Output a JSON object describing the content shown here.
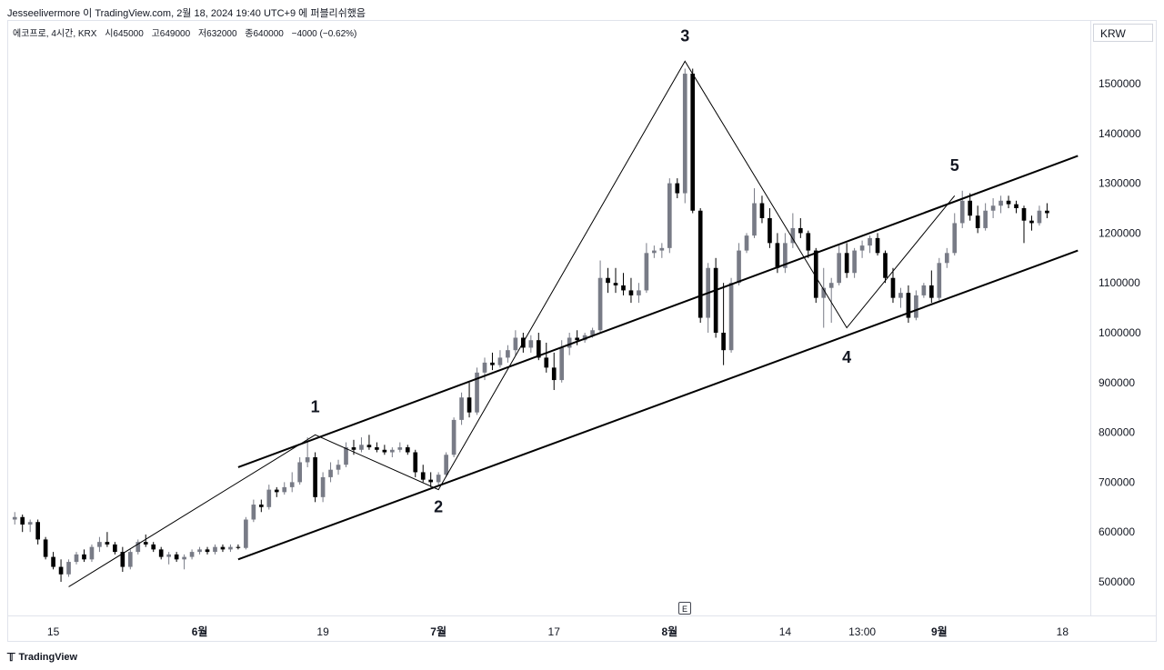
{
  "header": {
    "published_line": "Jesseelivermore 이 TradingView.com, 2월 18, 2024 19:40 UTC+9 에 퍼블리쉬했음"
  },
  "legend": {
    "symbol": "에코프로, 4시간, KRX",
    "open": "시645000",
    "high": "고649000",
    "low": "저632000",
    "close": "종640000",
    "change": "−4000 (−0.62%)"
  },
  "currency_label": "KRW",
  "event_badge": "E",
  "brand": "TradingView",
  "colors": {
    "up": "#787b86",
    "down": "#000000",
    "line": "#000000",
    "grid": "#e0e3eb"
  },
  "chart_data": {
    "type": "candlestick",
    "y_axis": {
      "ticks": [
        500000,
        600000,
        700000,
        800000,
        900000,
        1000000,
        1100000,
        1200000,
        1300000,
        1400000,
        1500000
      ],
      "tick_labels": [
        "500000",
        "600000",
        "700000",
        "800000",
        "900000",
        "1000000",
        "1100000",
        "1200000",
        "1300000",
        "1400000",
        "1500000"
      ],
      "range": [
        450000,
        1560000
      ],
      "unit": "KRW"
    },
    "x_axis": {
      "labels": [
        "15",
        "6월",
        "19",
        "7월",
        "17",
        "8월",
        "14",
        "13:00",
        "9월",
        "18"
      ],
      "label_bar_index": [
        5,
        24,
        40,
        55,
        70,
        85,
        100,
        110,
        120,
        136
      ],
      "bold_labels": [
        "6월",
        "7월",
        "8월",
        "9월"
      ],
      "total_bars": 140
    },
    "candles": [
      [
        0,
        625000,
        640000,
        615000,
        630000
      ],
      [
        1,
        630000,
        635000,
        600000,
        615000
      ],
      [
        2,
        615000,
        625000,
        600000,
        620000
      ],
      [
        3,
        620000,
        625000,
        575000,
        585000
      ],
      [
        4,
        585000,
        590000,
        545000,
        550000
      ],
      [
        5,
        550000,
        560000,
        525000,
        530000
      ],
      [
        6,
        530000,
        545000,
        500000,
        515000
      ],
      [
        7,
        515000,
        545000,
        510000,
        540000
      ],
      [
        8,
        540000,
        560000,
        535000,
        555000
      ],
      [
        9,
        555000,
        565000,
        540000,
        545000
      ],
      [
        10,
        545000,
        575000,
        540000,
        570000
      ],
      [
        11,
        570000,
        590000,
        560000,
        580000
      ],
      [
        12,
        580000,
        600000,
        570000,
        575000
      ],
      [
        13,
        575000,
        580000,
        555000,
        560000
      ],
      [
        14,
        560000,
        570000,
        520000,
        530000
      ],
      [
        15,
        530000,
        565000,
        525000,
        560000
      ],
      [
        16,
        560000,
        585000,
        555000,
        580000
      ],
      [
        17,
        580000,
        595000,
        570000,
        575000
      ],
      [
        18,
        575000,
        580000,
        560000,
        565000
      ],
      [
        19,
        565000,
        570000,
        545000,
        550000
      ],
      [
        20,
        550000,
        560000,
        535000,
        555000
      ],
      [
        21,
        555000,
        560000,
        540000,
        545000
      ],
      [
        22,
        545000,
        555000,
        525000,
        550000
      ],
      [
        23,
        550000,
        565000,
        545000,
        560000
      ],
      [
        24,
        560000,
        570000,
        555000,
        565000
      ],
      [
        25,
        565000,
        570000,
        555000,
        560000
      ],
      [
        26,
        560000,
        575000,
        555000,
        570000
      ],
      [
        27,
        570000,
        575000,
        560000,
        565000
      ],
      [
        28,
        565000,
        575000,
        560000,
        570000
      ],
      [
        29,
        570000,
        575000,
        565000,
        568000
      ],
      [
        30,
        568000,
        630000,
        565000,
        625000
      ],
      [
        31,
        625000,
        665000,
        620000,
        655000
      ],
      [
        32,
        655000,
        665000,
        640000,
        650000
      ],
      [
        33,
        650000,
        695000,
        645000,
        685000
      ],
      [
        34,
        685000,
        690000,
        670000,
        680000
      ],
      [
        35,
        680000,
        700000,
        675000,
        690000
      ],
      [
        36,
        690000,
        720000,
        680000,
        700000
      ],
      [
        37,
        700000,
        750000,
        695000,
        740000
      ],
      [
        38,
        740000,
        790000,
        730000,
        750000
      ],
      [
        39,
        750000,
        760000,
        660000,
        670000
      ],
      [
        40,
        670000,
        720000,
        660000,
        710000
      ],
      [
        41,
        710000,
        740000,
        700000,
        725000
      ],
      [
        42,
        725000,
        745000,
        715000,
        735000
      ],
      [
        43,
        735000,
        780000,
        730000,
        770000
      ],
      [
        44,
        770000,
        785000,
        755000,
        765000
      ],
      [
        45,
        765000,
        790000,
        760000,
        775000
      ],
      [
        46,
        775000,
        795000,
        765000,
        770000
      ],
      [
        47,
        770000,
        780000,
        760000,
        765000
      ],
      [
        48,
        765000,
        775000,
        755000,
        760000
      ],
      [
        49,
        760000,
        770000,
        750000,
        765000
      ],
      [
        50,
        765000,
        780000,
        760000,
        770000
      ],
      [
        51,
        770000,
        775000,
        755000,
        760000
      ],
      [
        52,
        760000,
        765000,
        710000,
        720000
      ],
      [
        53,
        720000,
        735000,
        700000,
        705000
      ],
      [
        54,
        705000,
        720000,
        690000,
        700000
      ],
      [
        55,
        700000,
        720000,
        695000,
        715000
      ],
      [
        56,
        715000,
        760000,
        710000,
        755000
      ],
      [
        57,
        755000,
        830000,
        750000,
        825000
      ],
      [
        58,
        825000,
        880000,
        815000,
        870000
      ],
      [
        59,
        870000,
        900000,
        830000,
        840000
      ],
      [
        60,
        840000,
        930000,
        835000,
        920000
      ],
      [
        61,
        920000,
        950000,
        905000,
        940000
      ],
      [
        62,
        940000,
        960000,
        925000,
        935000
      ],
      [
        63,
        935000,
        965000,
        930000,
        950000
      ],
      [
        64,
        950000,
        975000,
        940000,
        965000
      ],
      [
        65,
        965000,
        1005000,
        955000,
        990000
      ],
      [
        66,
        990000,
        1000000,
        960000,
        970000
      ],
      [
        67,
        970000,
        995000,
        960000,
        985000
      ],
      [
        68,
        985000,
        1000000,
        945000,
        950000
      ],
      [
        69,
        950000,
        980000,
        920000,
        930000
      ],
      [
        70,
        930000,
        960000,
        885000,
        905000
      ],
      [
        71,
        905000,
        985000,
        900000,
        970000
      ],
      [
        72,
        970000,
        1000000,
        955000,
        990000
      ],
      [
        73,
        990000,
        1005000,
        975000,
        985000
      ],
      [
        74,
        985000,
        1000000,
        980000,
        995000
      ],
      [
        75,
        995000,
        1010000,
        990000,
        1005000
      ],
      [
        76,
        1005000,
        1145000,
        1000000,
        1110000
      ],
      [
        77,
        1110000,
        1130000,
        1080000,
        1100000
      ],
      [
        78,
        1100000,
        1130000,
        1080000,
        1095000
      ],
      [
        79,
        1095000,
        1120000,
        1075000,
        1085000
      ],
      [
        80,
        1085000,
        1110000,
        1060000,
        1075000
      ],
      [
        81,
        1075000,
        1100000,
        1060000,
        1085000
      ],
      [
        82,
        1085000,
        1180000,
        1080000,
        1160000
      ],
      [
        83,
        1160000,
        1175000,
        1150000,
        1165000
      ],
      [
        84,
        1165000,
        1180000,
        1150000,
        1170000
      ],
      [
        85,
        1170000,
        1310000,
        1160000,
        1300000
      ],
      [
        86,
        1300000,
        1310000,
        1270000,
        1280000
      ],
      [
        87,
        1280000,
        1530000,
        1260000,
        1520000
      ],
      [
        88,
        1520000,
        1530000,
        1240000,
        1245000
      ],
      [
        89,
        1245000,
        1250000,
        1020000,
        1030000
      ],
      [
        90,
        1030000,
        1140000,
        1000000,
        1130000
      ],
      [
        91,
        1130000,
        1150000,
        990000,
        1000000
      ],
      [
        92,
        1000000,
        1100000,
        935000,
        965000
      ],
      [
        93,
        965000,
        1110000,
        960000,
        1100000
      ],
      [
        94,
        1100000,
        1180000,
        1095000,
        1165000
      ],
      [
        95,
        1165000,
        1200000,
        1160000,
        1195000
      ],
      [
        96,
        1195000,
        1290000,
        1190000,
        1260000
      ],
      [
        97,
        1260000,
        1275000,
        1220000,
        1230000
      ],
      [
        98,
        1230000,
        1250000,
        1170000,
        1180000
      ],
      [
        99,
        1180000,
        1200000,
        1120000,
        1130000
      ],
      [
        100,
        1130000,
        1200000,
        1120000,
        1180000
      ],
      [
        101,
        1180000,
        1240000,
        1170000,
        1210000
      ],
      [
        102,
        1210000,
        1230000,
        1190000,
        1200000
      ],
      [
        103,
        1200000,
        1205000,
        1150000,
        1165000
      ],
      [
        104,
        1165000,
        1170000,
        1060000,
        1070000
      ],
      [
        105,
        1070000,
        1130000,
        1010000,
        1090000
      ],
      [
        106,
        1090000,
        1110000,
        1020000,
        1100000
      ],
      [
        107,
        1100000,
        1175000,
        1095000,
        1160000
      ],
      [
        108,
        1160000,
        1180000,
        1110000,
        1120000
      ],
      [
        109,
        1120000,
        1170000,
        1110000,
        1165000
      ],
      [
        110,
        1165000,
        1185000,
        1150000,
        1175000
      ],
      [
        111,
        1175000,
        1195000,
        1160000,
        1190000
      ],
      [
        112,
        1190000,
        1200000,
        1155000,
        1160000
      ],
      [
        113,
        1160000,
        1165000,
        1100000,
        1110000
      ],
      [
        114,
        1110000,
        1130000,
        1060000,
        1070000
      ],
      [
        115,
        1070000,
        1090000,
        1050000,
        1080000
      ],
      [
        116,
        1080000,
        1095000,
        1020000,
        1030000
      ],
      [
        117,
        1030000,
        1085000,
        1025000,
        1075000
      ],
      [
        118,
        1075000,
        1100000,
        1070000,
        1095000
      ],
      [
        119,
        1095000,
        1125000,
        1060000,
        1070000
      ],
      [
        120,
        1070000,
        1150000,
        1065000,
        1140000
      ],
      [
        121,
        1140000,
        1170000,
        1130000,
        1160000
      ],
      [
        122,
        1160000,
        1240000,
        1155000,
        1220000
      ],
      [
        123,
        1220000,
        1285000,
        1210000,
        1265000
      ],
      [
        124,
        1265000,
        1280000,
        1225000,
        1235000
      ],
      [
        125,
        1235000,
        1255000,
        1200000,
        1210000
      ],
      [
        126,
        1210000,
        1260000,
        1205000,
        1245000
      ],
      [
        127,
        1245000,
        1270000,
        1230000,
        1255000
      ],
      [
        128,
        1255000,
        1275000,
        1240000,
        1265000
      ],
      [
        129,
        1265000,
        1275000,
        1250000,
        1258000
      ],
      [
        130,
        1258000,
        1265000,
        1240000,
        1250000
      ],
      [
        131,
        1250000,
        1255000,
        1180000,
        1225000
      ],
      [
        132,
        1225000,
        1235000,
        1205000,
        1220000
      ],
      [
        133,
        1220000,
        1255000,
        1215000,
        1245000
      ],
      [
        134,
        1245000,
        1260000,
        1230000,
        1240000
      ]
    ],
    "candle_note": "each candle = [bar_index, open, high, low, close]",
    "wave_path": {
      "bar_index": [
        7,
        39,
        55,
        87,
        108,
        122
      ],
      "price": [
        490000,
        795000,
        685000,
        1545000,
        1010000,
        1275000
      ]
    },
    "wave_labels": [
      {
        "text": "1",
        "bar": 39,
        "price": 840000
      },
      {
        "text": "2",
        "bar": 55,
        "price": 640000
      },
      {
        "text": "3",
        "bar": 87,
        "price": 1585000
      },
      {
        "text": "4",
        "bar": 108,
        "price": 940000
      },
      {
        "text": "5",
        "bar": 122,
        "price": 1325000
      }
    ],
    "channel_lines": [
      {
        "from_bar": 29,
        "from_price": 730000,
        "to_bar": 138,
        "to_price": 1355000
      },
      {
        "from_bar": 29,
        "from_price": 545000,
        "to_bar": 138,
        "to_price": 1165000
      }
    ]
  }
}
